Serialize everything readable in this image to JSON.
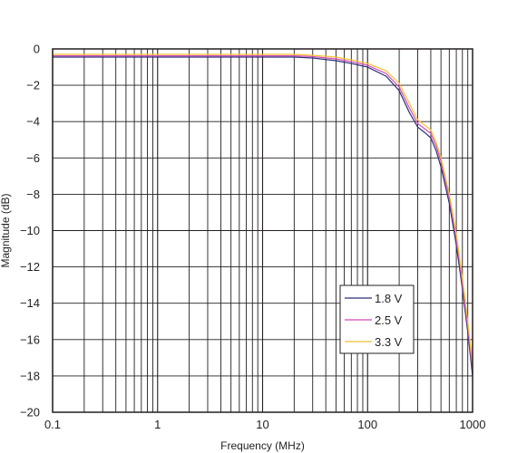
{
  "chart_data": {
    "type": "line",
    "title": "",
    "xlabel": "Frequency (MHz)",
    "ylabel": "Magnitude (dB)",
    "xscale": "log",
    "xlim": [
      0.1,
      1000
    ],
    "ylim": [
      -20,
      0
    ],
    "x_ticks": [
      0.1,
      1,
      10,
      100,
      1000
    ],
    "x_tick_labels": [
      "0.1",
      "1",
      "10",
      "100",
      "1000"
    ],
    "y_ticks": [
      0,
      -2,
      -4,
      -6,
      -8,
      -10,
      -12,
      -14,
      -16,
      -18,
      -20
    ],
    "y_tick_labels": [
      "0",
      "−2",
      "−4",
      "−6",
      "−8",
      "−10",
      "−12",
      "−14",
      "−16",
      "−18",
      "−20"
    ],
    "grid": true,
    "legend_position": "bottom-right",
    "series": [
      {
        "name": "1.8 V",
        "color": "#2b2f7a",
        "x": [
          0.1,
          1,
          10,
          20,
          30,
          50,
          70,
          100,
          150,
          200,
          250,
          300,
          350,
          400,
          450,
          500,
          600,
          700,
          800,
          900,
          1000
        ],
        "y": [
          -0.45,
          -0.45,
          -0.45,
          -0.45,
          -0.5,
          -0.65,
          -0.8,
          -1.0,
          -1.5,
          -2.3,
          -3.5,
          -4.3,
          -4.6,
          -4.9,
          -5.6,
          -6.5,
          -8.5,
          -10.8,
          -13.2,
          -15.6,
          -18.0
        ]
      },
      {
        "name": "2.5 V",
        "color": "#d44ab5",
        "x": [
          0.1,
          1,
          10,
          20,
          30,
          50,
          70,
          100,
          150,
          200,
          250,
          300,
          350,
          400,
          450,
          500,
          600,
          700,
          800,
          900,
          1000
        ],
        "y": [
          -0.38,
          -0.38,
          -0.38,
          -0.38,
          -0.42,
          -0.55,
          -0.7,
          -0.9,
          -1.35,
          -2.1,
          -3.25,
          -4.1,
          -4.4,
          -4.65,
          -5.35,
          -6.2,
          -8.2,
          -10.5,
          -12.9,
          -15.3,
          -17.7
        ]
      },
      {
        "name": "3.3 V",
        "color": "#f2c230",
        "x": [
          0.1,
          1,
          10,
          20,
          30,
          50,
          70,
          100,
          150,
          200,
          250,
          300,
          350,
          400,
          450,
          500,
          600,
          700,
          800,
          900,
          1000
        ],
        "y": [
          -0.3,
          -0.3,
          -0.3,
          -0.3,
          -0.35,
          -0.45,
          -0.6,
          -0.8,
          -1.2,
          -1.9,
          -3.0,
          -3.9,
          -4.2,
          -4.45,
          -5.15,
          -6.0,
          -8.0,
          -10.2,
          -12.6,
          -15.0,
          -17.4
        ]
      }
    ]
  }
}
